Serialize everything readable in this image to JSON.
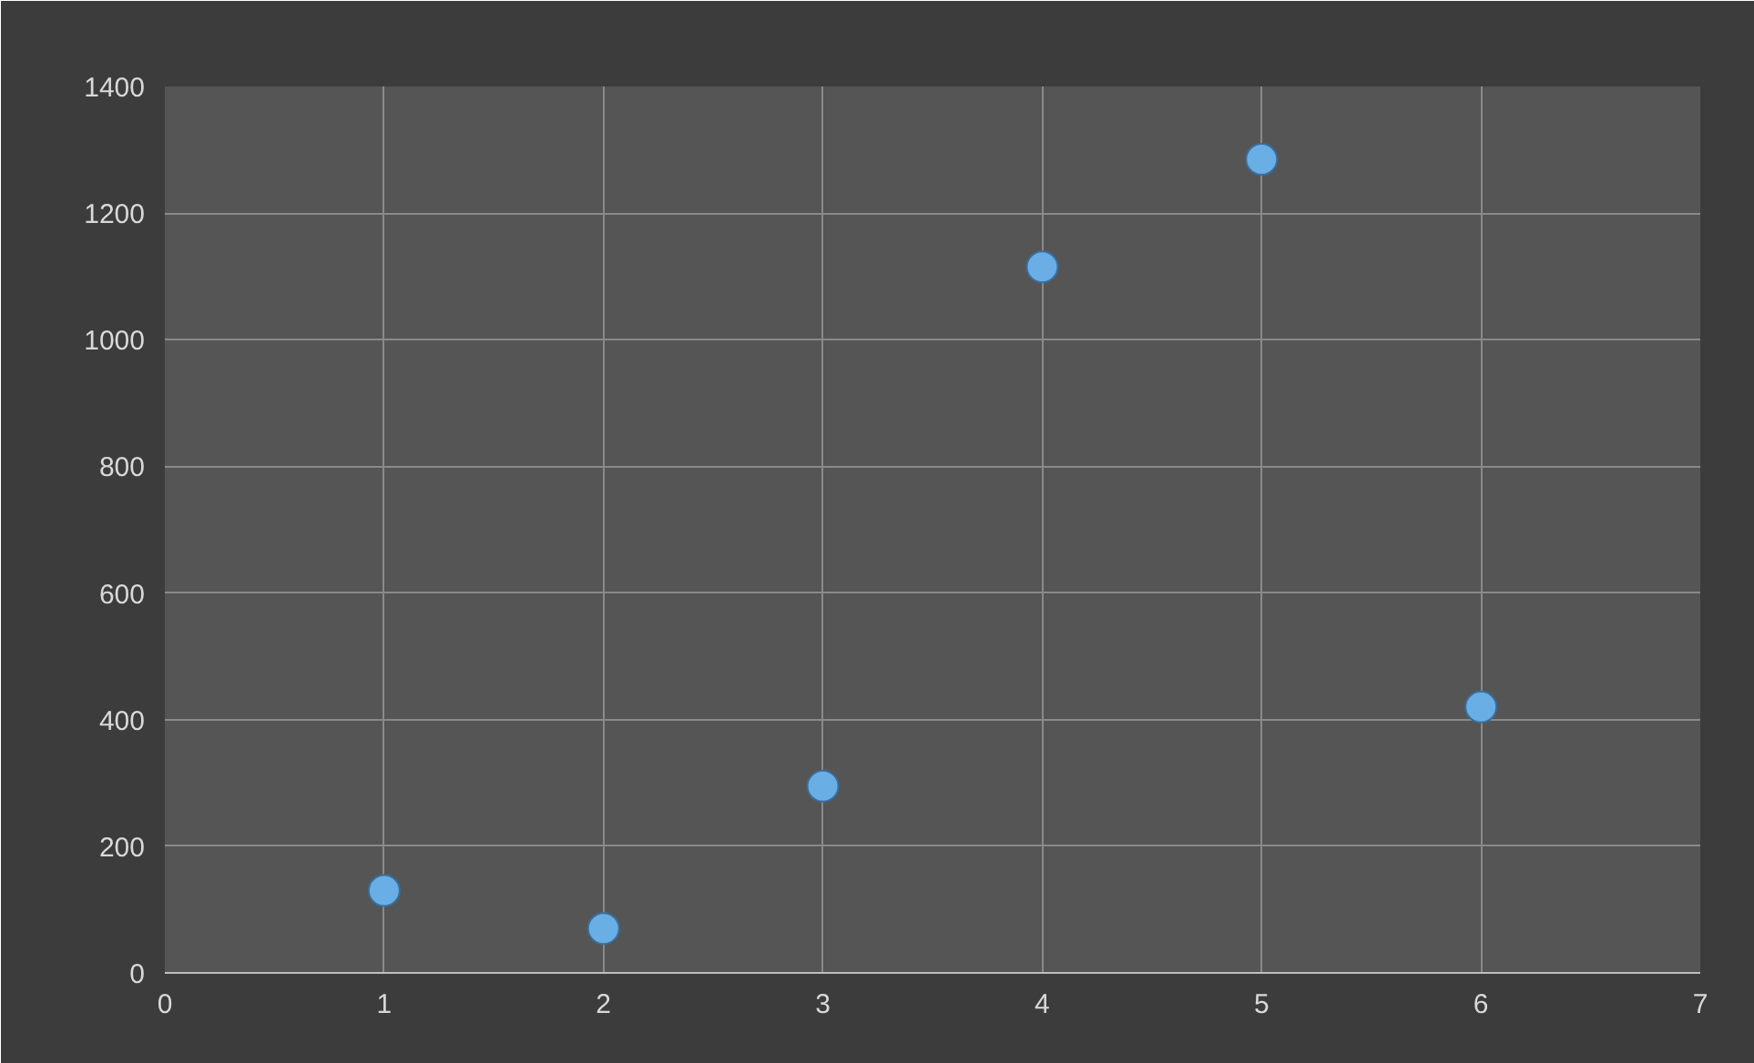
{
  "chart_data": {
    "type": "scatter",
    "x": [
      1,
      2,
      3,
      4,
      5,
      6
    ],
    "series": [
      {
        "color": "#6aaee6",
        "values": [
          130,
          70,
          295,
          1115,
          1285,
          420
        ]
      }
    ],
    "xlim": [
      0,
      7
    ],
    "xticks": [
      0,
      1,
      2,
      3,
      4,
      5,
      6,
      7
    ],
    "ylim": [
      0,
      1400
    ],
    "yticks": [
      0,
      200,
      400,
      600,
      800,
      1000,
      1200,
      1400
    ],
    "grid": true,
    "marker": "circle"
  }
}
